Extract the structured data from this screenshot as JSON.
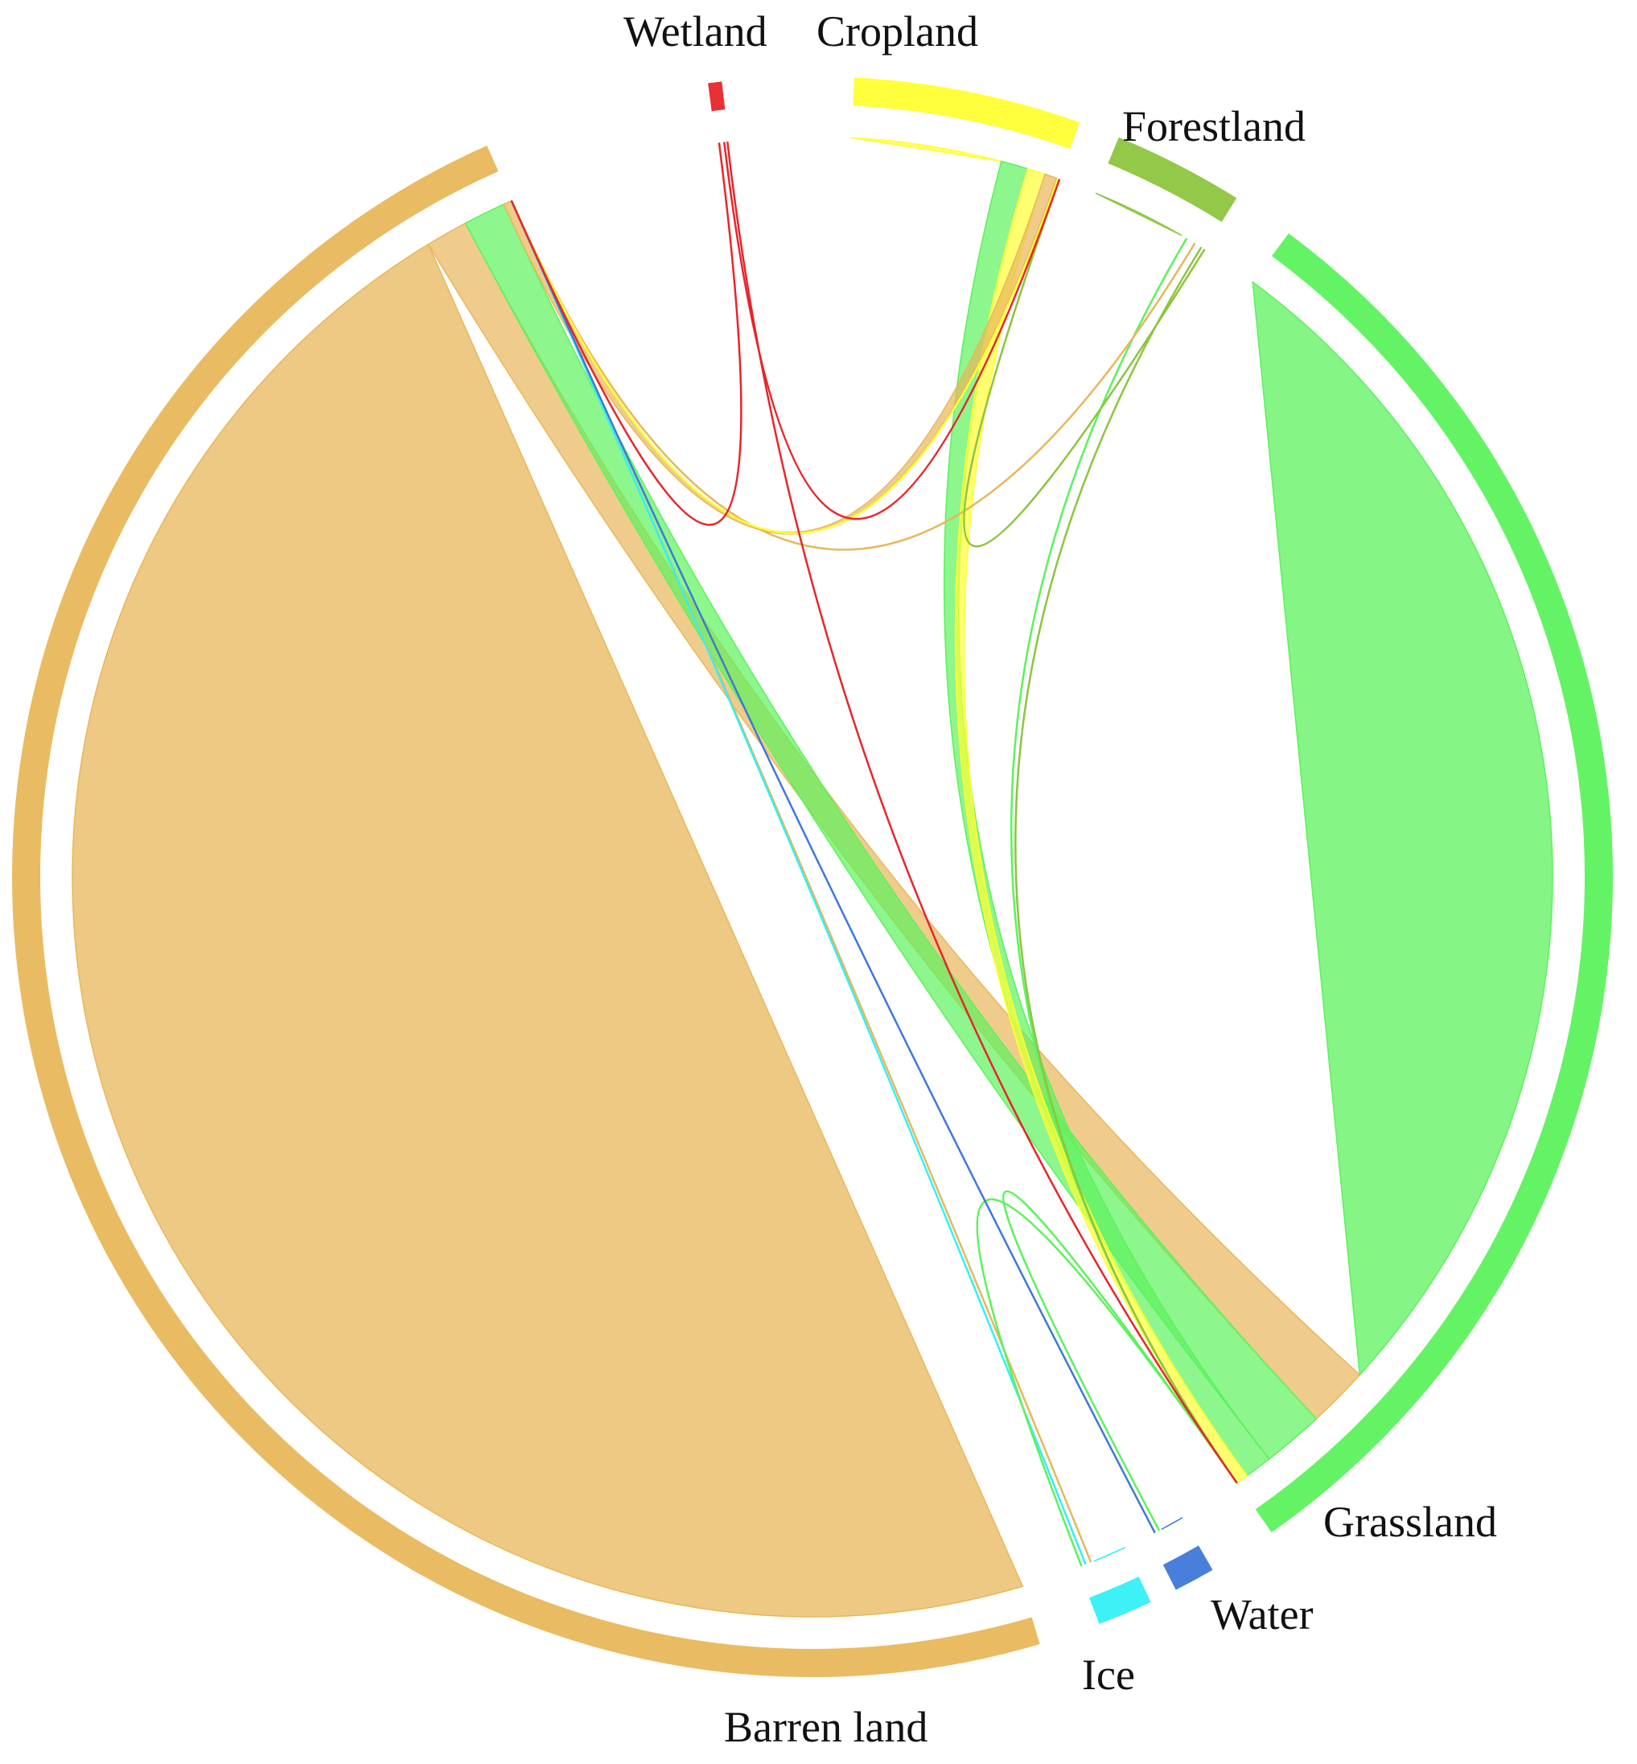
{
  "chart_data": {
    "type": "chord",
    "categories": [
      "Barren land",
      "Wetland",
      "Cropland",
      "Forestland",
      "Grassland",
      "Water",
      "Ice"
    ],
    "colors": {
      "Barren land": "#E8B75A",
      "Wetland": "#E8252A",
      "Cropland": "#FFFF33",
      "Forestland": "#8DC53E",
      "Grassland": "#5CF25C",
      "Water": "#3F78D8",
      "Ice": "#33F0F5"
    },
    "group_totals": {
      "Barren land": 1044,
      "Wetland": 1,
      "Cropland": 70,
      "Forestland": 32,
      "Grassland": 453,
      "Water": 8,
      "Ice": 18
    },
    "flows": [
      {
        "from": "Barren land",
        "to": "Barren land",
        "value": 1000
      },
      {
        "from": "Barren land",
        "to": "Grassland",
        "value": 20
      },
      {
        "from": "Barren land",
        "to": "Cropland",
        "value": 4
      },
      {
        "from": "Barren land",
        "to": "Forestland",
        "value": 2
      },
      {
        "from": "Barren land",
        "to": "Ice",
        "value": 2
      },
      {
        "from": "Grassland",
        "to": "Grassland",
        "value": 400
      },
      {
        "from": "Grassland",
        "to": "Barren land",
        "value": 20
      },
      {
        "from": "Grassland",
        "to": "Cropland",
        "value": 9
      },
      {
        "from": "Grassland",
        "to": "Forestland",
        "value": 3
      },
      {
        "from": "Grassland",
        "to": "Ice",
        "value": 1
      },
      {
        "from": "Grassland",
        "to": "Water",
        "value": 1
      },
      {
        "from": "Cropland",
        "to": "Cropland",
        "value": 50
      },
      {
        "from": "Cropland",
        "to": "Grassland",
        "value": 6
      },
      {
        "from": "Cropland",
        "to": "Barren land",
        "value": 1
      },
      {
        "from": "Forestland",
        "to": "Forestland",
        "value": 25
      },
      {
        "from": "Forestland",
        "to": "Grassland",
        "value": 2
      },
      {
        "from": "Forestland",
        "to": "Cropland",
        "value": 1
      },
      {
        "from": "Ice",
        "to": "Ice",
        "value": 12
      },
      {
        "from": "Ice",
        "to": "Barren land",
        "value": 2
      },
      {
        "from": "Water",
        "to": "Water",
        "value": 5
      },
      {
        "from": "Water",
        "to": "Barren land",
        "value": 1
      },
      {
        "from": "Wetland",
        "to": "Barren land",
        "value": 0.5
      },
      {
        "from": "Wetland",
        "to": "Cropland",
        "value": 0.3
      },
      {
        "from": "Wetland",
        "to": "Grassland",
        "value": 0.2
      }
    ],
    "legend": "labels outside the ring"
  }
}
